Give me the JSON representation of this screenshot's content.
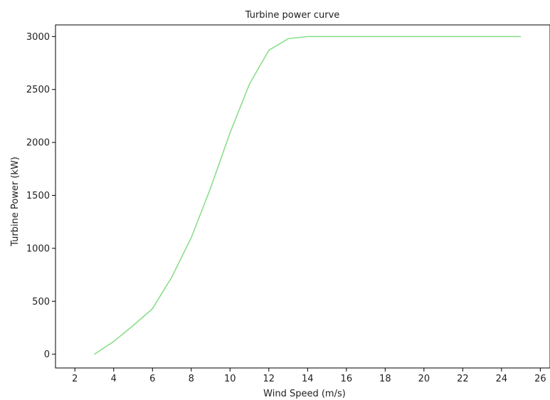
{
  "chart_data": {
    "type": "line",
    "title": "Turbine power curve",
    "xlabel": "Wind Speed (m/s)",
    "ylabel": "Turbine Power (kW)",
    "xlim": [
      1,
      26.5
    ],
    "ylim": [
      -130,
      3110
    ],
    "xticks": [
      2,
      4,
      6,
      8,
      10,
      12,
      14,
      16,
      18,
      20,
      22,
      24,
      26
    ],
    "yticks": [
      0,
      500,
      1000,
      1500,
      2000,
      2500,
      3000
    ],
    "grid": false,
    "line_color": "#86dc86",
    "series": [
      {
        "x": [
          3,
          4,
          5,
          6,
          7,
          8,
          9,
          10,
          11,
          12,
          13,
          14,
          15,
          16,
          17,
          18,
          19,
          20,
          21,
          22,
          23,
          24,
          25
        ],
        "y": [
          0,
          120,
          270,
          430,
          730,
          1100,
          1570,
          2090,
          2550,
          2870,
          2980,
          3000,
          3000,
          3000,
          3000,
          3000,
          3000,
          3000,
          3000,
          3000,
          3000,
          3000,
          3000
        ]
      }
    ]
  }
}
